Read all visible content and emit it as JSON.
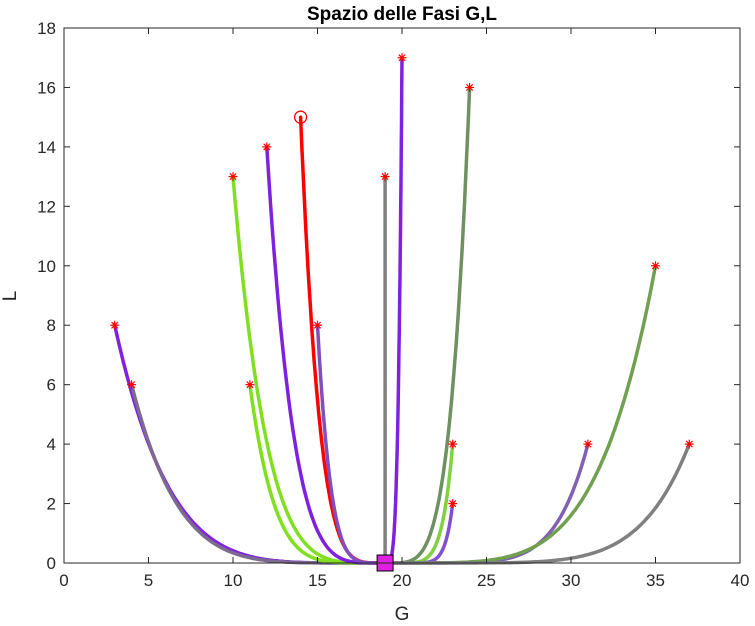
{
  "chart_data": {
    "type": "line",
    "title": "Spazio delle Fasi G,L",
    "xlabel": "G",
    "ylabel": "L",
    "xlim": [
      0,
      40
    ],
    "ylim": [
      0,
      18
    ],
    "xticks": [
      0,
      5,
      10,
      15,
      20,
      25,
      30,
      35,
      40
    ],
    "yticks": [
      0,
      2,
      4,
      6,
      8,
      10,
      12,
      14,
      16,
      18
    ],
    "grid": false,
    "legend": null,
    "equilibrium": {
      "x": 19,
      "y": 0,
      "marker": "square",
      "color": "#e020e0"
    },
    "series": [
      {
        "start": [
          3,
          8
        ],
        "color": "#8020e0",
        "marker": "*"
      },
      {
        "start": [
          4,
          6
        ],
        "color": "#7d6a90",
        "marker": "*"
      },
      {
        "start": [
          10,
          13
        ],
        "color": "#80e020",
        "marker": "*"
      },
      {
        "start": [
          11,
          6
        ],
        "color": "#80e020",
        "marker": "*"
      },
      {
        "start": [
          12,
          14
        ],
        "color": "#8020e0",
        "marker": "*"
      },
      {
        "start": [
          14,
          15
        ],
        "color": "#ff0000",
        "marker": "o"
      },
      {
        "start": [
          15,
          8
        ],
        "color": "#7f4fc0",
        "marker": "*"
      },
      {
        "start": [
          19,
          13
        ],
        "color": "#808080",
        "marker": "*"
      },
      {
        "start": [
          20,
          17
        ],
        "color": "#8020e0",
        "marker": "*"
      },
      {
        "start": [
          23,
          4
        ],
        "color": "#80d040",
        "marker": "*"
      },
      {
        "start": [
          23,
          2
        ],
        "color": "#8050d0",
        "marker": "*"
      },
      {
        "start": [
          24,
          16
        ],
        "color": "#6f9060",
        "marker": "*"
      },
      {
        "start": [
          31,
          4
        ],
        "color": "#8060b0",
        "marker": "*"
      },
      {
        "start": [
          35,
          10
        ],
        "color": "#70a050",
        "marker": "*"
      },
      {
        "start": [
          37,
          4
        ],
        "color": "#808080",
        "marker": "*"
      }
    ]
  }
}
